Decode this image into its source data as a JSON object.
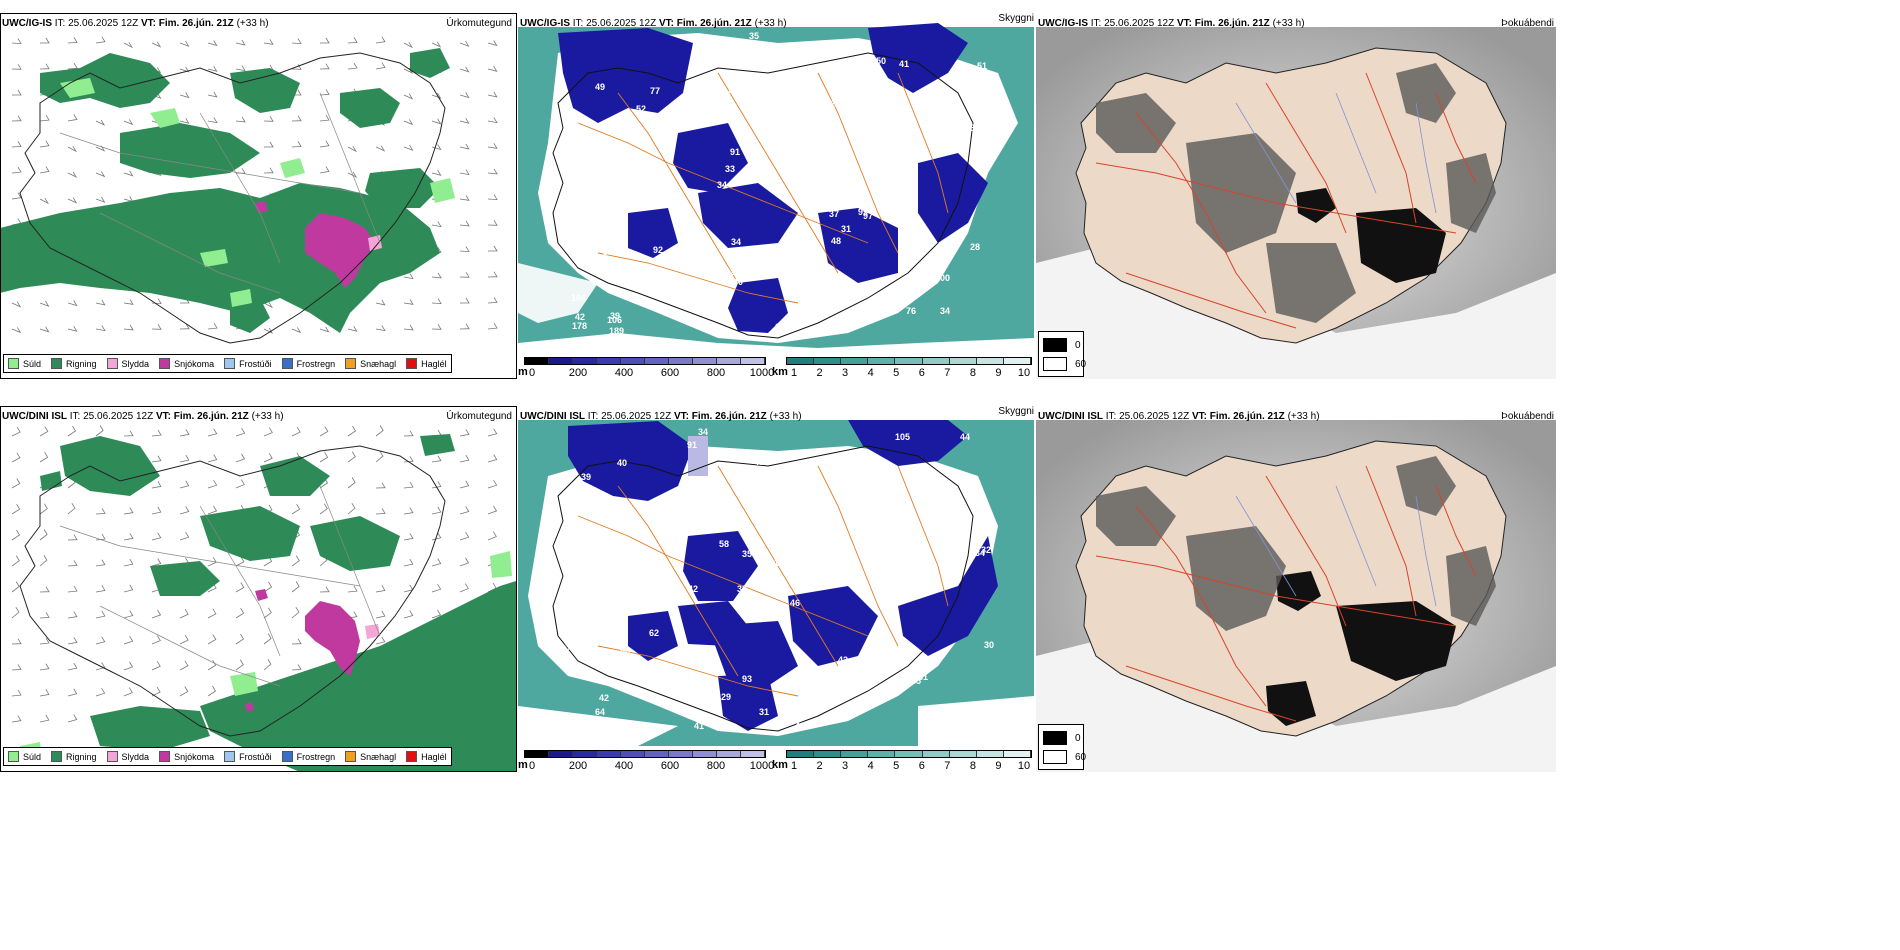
{
  "figures": {
    "runs": [
      {
        "model": "UWC/IG-IS",
        "it_label": "IT:",
        "it_value": "25.06.2025 12Z",
        "vt_label": "VT:",
        "vt_value": "Fim. 26.jún. 21Z",
        "lead": "(+33 h)"
      },
      {
        "model": "UWC/DINI ISL",
        "it_label": "IT:",
        "it_value": "25.06.2025 12Z",
        "vt_label": "VT:",
        "vt_value": "Fim. 26.jún. 21Z",
        "lead": "(+33 h)"
      }
    ],
    "panel_types": [
      "Úrkomutegund",
      "Skyggni",
      "Þokuábendi"
    ]
  },
  "precip_legend": [
    {
      "label": "Súld",
      "color": "#90ee90"
    },
    {
      "label": "Rigning",
      "color": "#2e8b57"
    },
    {
      "label": "Slydda",
      "color": "#f4a6d7"
    },
    {
      "label": "Snjókoma",
      "color": "#c0399f"
    },
    {
      "label": "Frostúði",
      "color": "#9ec7f0"
    },
    {
      "label": "Frostregn",
      "color": "#3a6fc7"
    },
    {
      "label": "Snæhagl",
      "color": "#f0a020"
    },
    {
      "label": "Haglél",
      "color": "#e01010"
    }
  ],
  "height_scale": {
    "unit": "m",
    "ticks": [
      "0",
      "200",
      "400",
      "600",
      "800",
      "1000"
    ],
    "colors": [
      "#000000",
      "#1a1a8c",
      "#2a2aa0",
      "#3b3bb0",
      "#4e4eb8",
      "#6464c0",
      "#7a7ac8",
      "#9090d0",
      "#a8a8da",
      "#c0c0e6"
    ]
  },
  "visibility_scale": {
    "unit": "km",
    "ticks": [
      "1",
      "2",
      "3",
      "4",
      "5",
      "6",
      "7",
      "8",
      "9",
      "10"
    ],
    "colors": [
      "#1f7f7f",
      "#2e8f8a",
      "#45a09a",
      "#5eb0aa",
      "#78bdb7",
      "#92cac5",
      "#acd7d3",
      "#c6e4e1",
      "#e0f1ef"
    ]
  },
  "fog_legend": {
    "high": "0",
    "low": "60",
    "high_color": "#000000",
    "low_color": "#ffffff"
  },
  "vis_labels_top": [
    "34",
    "123",
    "37",
    "34",
    "32",
    "39",
    "55",
    "47",
    "38",
    "162",
    "104",
    "109",
    "46",
    "124",
    "97",
    "49",
    "115",
    "53",
    "37",
    "38",
    "33",
    "32",
    "91",
    "77",
    "86",
    "92",
    "76",
    "100",
    "99",
    "184",
    "681",
    "33",
    "48",
    "41",
    "35",
    "47",
    "42",
    "40",
    "39",
    "28",
    "35",
    "51",
    "31",
    "13",
    "12",
    "189",
    "178",
    "48",
    "41",
    "35",
    "30",
    "28",
    "52",
    "50",
    "106",
    "57",
    "60",
    "38",
    "28",
    "34"
  ],
  "vis_labels_bottom": [
    "34",
    "45",
    "34",
    "33",
    "46",
    "50",
    "39",
    "400",
    "276",
    "153",
    "173",
    "64",
    "91",
    "42",
    "49",
    "73",
    "93",
    "105",
    "94",
    "62",
    "53",
    "72",
    "32",
    "42",
    "35",
    "56",
    "35",
    "52",
    "81",
    "43",
    "35",
    "33",
    "58",
    "58",
    "42",
    "30",
    "31",
    "29",
    "44",
    "49",
    "42",
    "41",
    "50",
    "40",
    "31",
    "52"
  ]
}
